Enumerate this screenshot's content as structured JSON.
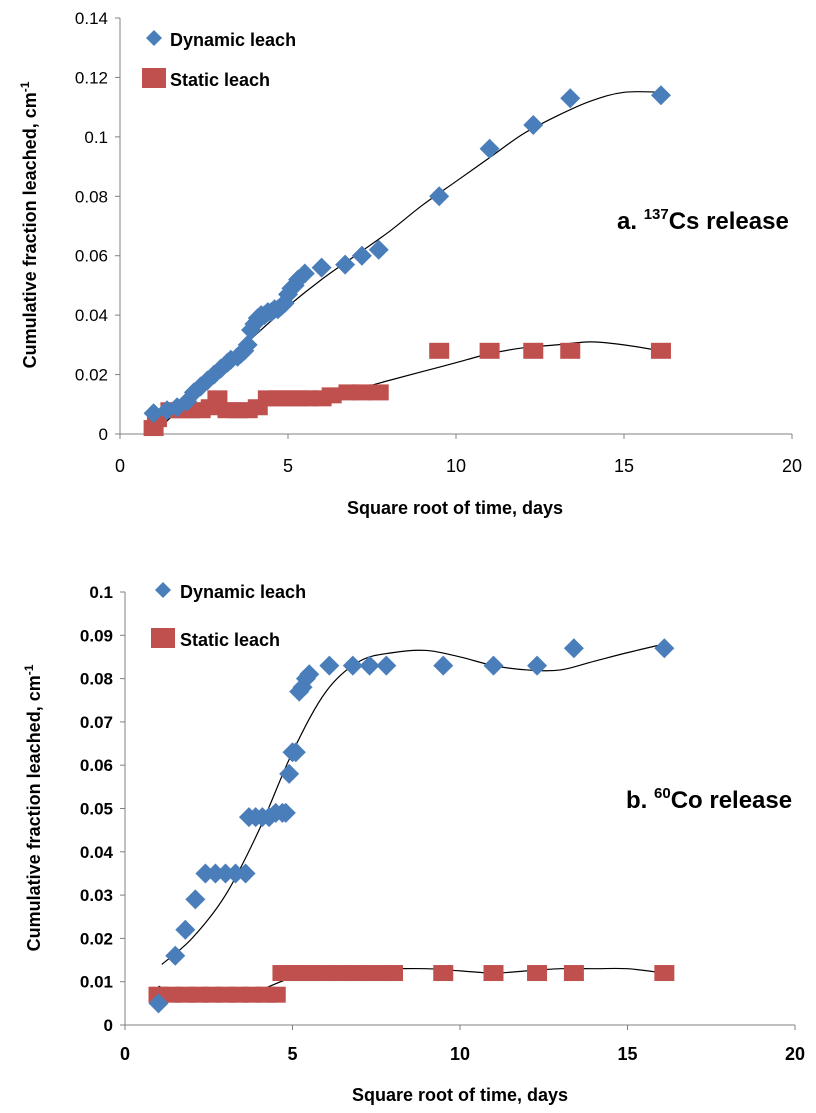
{
  "chart_data": [
    {
      "type": "scatter",
      "title": "",
      "xlabel": "Square root of time, days",
      "ylabel_main": "Cumulative fraction leached, cm",
      "ylabel_sup": "-1",
      "xlim": [
        0,
        20
      ],
      "ylim": [
        0,
        0.14
      ],
      "x_ticks": [
        0,
        5,
        10,
        15,
        20
      ],
      "y_ticks": [
        0,
        0.02,
        0.04,
        0.06,
        0.08,
        0.1,
        0.12,
        0.14
      ],
      "x_tick_labels": [
        "0",
        "5",
        "10",
        "15",
        "20"
      ],
      "y_tick_labels": [
        "0",
        "0.02",
        "0.04",
        "0.06",
        "0.08",
        "0.1",
        "0.12",
        "0.14"
      ],
      "grid": false,
      "legend_position": "top-left",
      "annotation": {
        "prefix": "a. ",
        "sup": "137",
        "rest": "Cs release"
      },
      "series": [
        {
          "name": "Dynamic leach",
          "marker": "diamond",
          "color": "#4a7ebb",
          "points": [
            [
              1.0,
              0.007
            ],
            [
              1.4,
              0.008
            ],
            [
              1.7,
              0.009
            ],
            [
              2.0,
              0.011
            ],
            [
              2.2,
              0.014
            ],
            [
              2.4,
              0.016
            ],
            [
              2.6,
              0.018
            ],
            [
              2.8,
              0.02
            ],
            [
              3.0,
              0.022
            ],
            [
              3.2,
              0.024
            ],
            [
              3.3,
              0.025
            ],
            [
              3.5,
              0.026
            ],
            [
              3.6,
              0.027
            ],
            [
              3.7,
              0.028
            ],
            [
              3.8,
              0.03
            ],
            [
              3.9,
              0.035
            ],
            [
              4.0,
              0.037
            ],
            [
              4.1,
              0.039
            ],
            [
              4.2,
              0.04
            ],
            [
              4.3,
              0.04
            ],
            [
              4.4,
              0.041
            ],
            [
              4.5,
              0.041
            ],
            [
              4.6,
              0.042
            ],
            [
              4.7,
              0.042
            ],
            [
              4.8,
              0.043
            ],
            [
              4.9,
              0.044
            ],
            [
              5.0,
              0.047
            ],
            [
              5.1,
              0.049
            ],
            [
              5.2,
              0.05
            ],
            [
              5.3,
              0.052
            ],
            [
              5.5,
              0.054
            ],
            [
              6.0,
              0.056
            ],
            [
              6.7,
              0.057
            ],
            [
              7.2,
              0.06
            ],
            [
              7.7,
              0.062
            ],
            [
              9.5,
              0.08
            ],
            [
              11.0,
              0.096
            ],
            [
              12.3,
              0.104
            ],
            [
              13.4,
              0.113
            ],
            [
              16.1,
              0.114
            ]
          ]
        },
        {
          "name": "Static leach",
          "marker": "square",
          "color": "#c0504d",
          "points": [
            [
              1.0,
              0.002
            ],
            [
              1.1,
              0.005
            ],
            [
              1.5,
              0.008
            ],
            [
              1.8,
              0.008
            ],
            [
              2.1,
              0.008
            ],
            [
              2.4,
              0.008
            ],
            [
              2.7,
              0.009
            ],
            [
              2.9,
              0.012
            ],
            [
              3.2,
              0.008
            ],
            [
              3.5,
              0.008
            ],
            [
              3.8,
              0.008
            ],
            [
              4.1,
              0.009
            ],
            [
              4.4,
              0.012
            ],
            [
              4.7,
              0.012
            ],
            [
              5.0,
              0.012
            ],
            [
              5.3,
              0.012
            ],
            [
              5.6,
              0.012
            ],
            [
              6.0,
              0.012
            ],
            [
              6.3,
              0.013
            ],
            [
              6.8,
              0.014
            ],
            [
              7.2,
              0.014
            ],
            [
              7.7,
              0.014
            ],
            [
              9.5,
              0.028
            ],
            [
              11.0,
              0.028
            ],
            [
              12.3,
              0.028
            ],
            [
              13.4,
              0.028
            ],
            [
              16.1,
              0.028
            ]
          ]
        }
      ],
      "trendlines": [
        {
          "color": "#000000",
          "points": [
            [
              1.0,
              0.0
            ],
            [
              2.0,
              0.011
            ],
            [
              3.0,
              0.022
            ],
            [
              4.0,
              0.033
            ],
            [
              5.0,
              0.043
            ],
            [
              6.0,
              0.052
            ],
            [
              7.0,
              0.06
            ],
            [
              8.0,
              0.068
            ],
            [
              9.0,
              0.077
            ],
            [
              10.0,
              0.085
            ],
            [
              11.0,
              0.093
            ],
            [
              12.0,
              0.101
            ],
            [
              13.0,
              0.107
            ],
            [
              14.0,
              0.112
            ],
            [
              15.0,
              0.115
            ],
            [
              16.2,
              0.115
            ]
          ]
        },
        {
          "color": "#000000",
          "points": [
            [
              1.0,
              0.007
            ],
            [
              2.0,
              0.007
            ],
            [
              3.0,
              0.008
            ],
            [
              4.0,
              0.009
            ],
            [
              5.0,
              0.011
            ],
            [
              6.0,
              0.013
            ],
            [
              7.0,
              0.015
            ],
            [
              8.0,
              0.018
            ],
            [
              9.0,
              0.021
            ],
            [
              10.0,
              0.024
            ],
            [
              11.0,
              0.027
            ],
            [
              12.0,
              0.029
            ],
            [
              13.0,
              0.03
            ],
            [
              14.0,
              0.031
            ],
            [
              15.0,
              0.03
            ],
            [
              16.1,
              0.028
            ]
          ]
        }
      ]
    },
    {
      "type": "scatter",
      "title": "",
      "xlabel": "Square root of time, days",
      "ylabel_main": "Cumulative fraction leached, cm",
      "ylabel_sup": "-1",
      "xlim": [
        0,
        20
      ],
      "ylim": [
        0,
        0.1
      ],
      "x_ticks": [
        0,
        5,
        10,
        15,
        20
      ],
      "y_ticks": [
        0,
        0.01,
        0.02,
        0.03,
        0.04,
        0.05,
        0.06,
        0.07,
        0.08,
        0.09,
        0.1
      ],
      "x_tick_labels": [
        "0",
        "5",
        "10",
        "15",
        "20"
      ],
      "y_tick_labels": [
        "0",
        "0.01",
        "0.02",
        "0.03",
        "0.04",
        "0.05",
        "0.06",
        "0.07",
        "0.08",
        "0.09",
        "0.1"
      ],
      "grid": false,
      "legend_position": "top-left",
      "annotation": {
        "prefix": "b. ",
        "sup": "60",
        "rest": "Co release"
      },
      "series": [
        {
          "name": "Dynamic leach",
          "marker": "diamond",
          "color": "#4a7ebb",
          "points": [
            [
              1.0,
              0.005
            ],
            [
              1.5,
              0.016
            ],
            [
              1.8,
              0.022
            ],
            [
              2.1,
              0.029
            ],
            [
              2.4,
              0.035
            ],
            [
              2.7,
              0.035
            ],
            [
              3.0,
              0.035
            ],
            [
              3.3,
              0.035
            ],
            [
              3.6,
              0.035
            ],
            [
              3.7,
              0.048
            ],
            [
              3.9,
              0.048
            ],
            [
              4.1,
              0.048
            ],
            [
              4.3,
              0.048
            ],
            [
              4.5,
              0.049
            ],
            [
              4.7,
              0.049
            ],
            [
              4.8,
              0.049
            ],
            [
              4.9,
              0.058
            ],
            [
              5.0,
              0.063
            ],
            [
              5.1,
              0.063
            ],
            [
              5.2,
              0.077
            ],
            [
              5.3,
              0.078
            ],
            [
              5.4,
              0.08
            ],
            [
              5.5,
              0.081
            ],
            [
              6.1,
              0.083
            ],
            [
              6.8,
              0.083
            ],
            [
              7.3,
              0.083
            ],
            [
              7.8,
              0.083
            ],
            [
              9.5,
              0.083
            ],
            [
              11.0,
              0.083
            ],
            [
              12.3,
              0.083
            ],
            [
              13.4,
              0.087
            ],
            [
              16.1,
              0.087
            ]
          ]
        },
        {
          "name": "Static leach",
          "marker": "square",
          "color": "#c0504d",
          "points": [
            [
              1.0,
              0.007
            ],
            [
              1.4,
              0.007
            ],
            [
              1.8,
              0.007
            ],
            [
              2.2,
              0.007
            ],
            [
              2.6,
              0.007
            ],
            [
              3.0,
              0.007
            ],
            [
              3.4,
              0.007
            ],
            [
              3.8,
              0.007
            ],
            [
              4.2,
              0.007
            ],
            [
              4.5,
              0.007
            ],
            [
              4.7,
              0.012
            ],
            [
              5.1,
              0.012
            ],
            [
              5.5,
              0.012
            ],
            [
              6.0,
              0.012
            ],
            [
              6.5,
              0.012
            ],
            [
              7.0,
              0.012
            ],
            [
              7.5,
              0.012
            ],
            [
              8.0,
              0.012
            ],
            [
              9.5,
              0.012
            ],
            [
              11.0,
              0.012
            ],
            [
              12.3,
              0.012
            ],
            [
              13.4,
              0.012
            ],
            [
              16.1,
              0.012
            ]
          ]
        }
      ],
      "trendlines": [
        {
          "color": "#000000",
          "points": [
            [
              1.1,
              0.014
            ],
            [
              2.0,
              0.02
            ],
            [
              3.0,
              0.03
            ],
            [
              4.0,
              0.045
            ],
            [
              5.0,
              0.063
            ],
            [
              6.0,
              0.077
            ],
            [
              7.0,
              0.084
            ],
            [
              8.0,
              0.086
            ],
            [
              9.0,
              0.0865
            ],
            [
              10.0,
              0.085
            ],
            [
              11.0,
              0.083
            ],
            [
              12.0,
              0.082
            ],
            [
              13.0,
              0.082
            ],
            [
              14.0,
              0.084
            ],
            [
              15.0,
              0.086
            ],
            [
              16.1,
              0.088
            ]
          ]
        },
        {
          "color": "#000000",
          "points": [
            [
              1.0,
              0.009
            ],
            [
              1.5,
              0.007
            ],
            [
              2.2,
              0.006
            ],
            [
              3.0,
              0.006
            ],
            [
              4.0,
              0.008
            ],
            [
              5.0,
              0.011
            ],
            [
              6.0,
              0.0125
            ],
            [
              7.0,
              0.013
            ],
            [
              8.0,
              0.013
            ],
            [
              9.0,
              0.013
            ],
            [
              10.0,
              0.0125
            ],
            [
              11.0,
              0.012
            ],
            [
              12.0,
              0.0125
            ],
            [
              13.0,
              0.013
            ],
            [
              14.0,
              0.013
            ],
            [
              15.0,
              0.013
            ],
            [
              16.1,
              0.012
            ]
          ]
        }
      ]
    }
  ]
}
